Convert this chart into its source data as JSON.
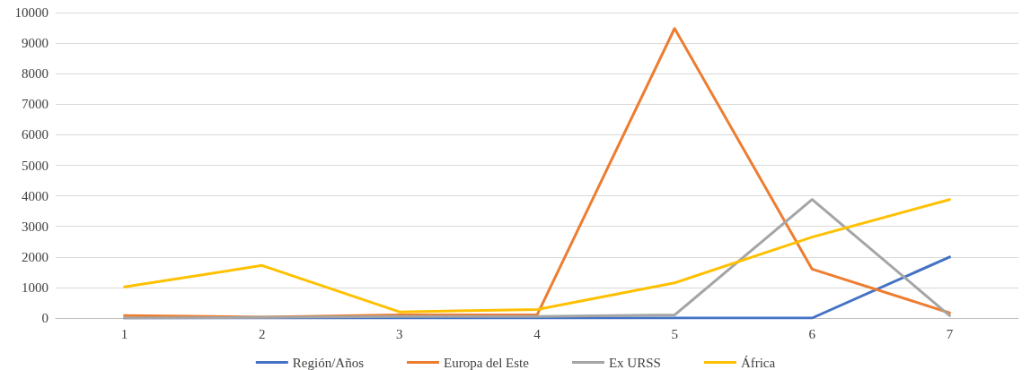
{
  "chart_data": {
    "type": "line",
    "categories": [
      "1",
      "2",
      "3",
      "4",
      "5",
      "6",
      "7"
    ],
    "series": [
      {
        "name": "Región/Años",
        "color": "#4472c4",
        "values": [
          0,
          0,
          0,
          0,
          0,
          0,
          2000
        ]
      },
      {
        "name": "Europa del Este",
        "color": "#ed7d31",
        "values": [
          80,
          30,
          100,
          100,
          9480,
          1600,
          170
        ]
      },
      {
        "name": "Ex URSS",
        "color": "#a5a5a5",
        "values": [
          0,
          20,
          50,
          50,
          100,
          3880,
          80
        ]
      },
      {
        "name": "África",
        "color": "#ffc000",
        "values": [
          1020,
          1720,
          200,
          280,
          1150,
          2650,
          3880
        ]
      }
    ],
    "ylim": [
      0,
      10000
    ],
    "yticks": [
      0,
      1000,
      2000,
      3000,
      4000,
      5000,
      6000,
      7000,
      8000,
      9000,
      10000
    ],
    "grid": "y",
    "legend": "bottom",
    "marker": "none",
    "line_style": "solid"
  }
}
